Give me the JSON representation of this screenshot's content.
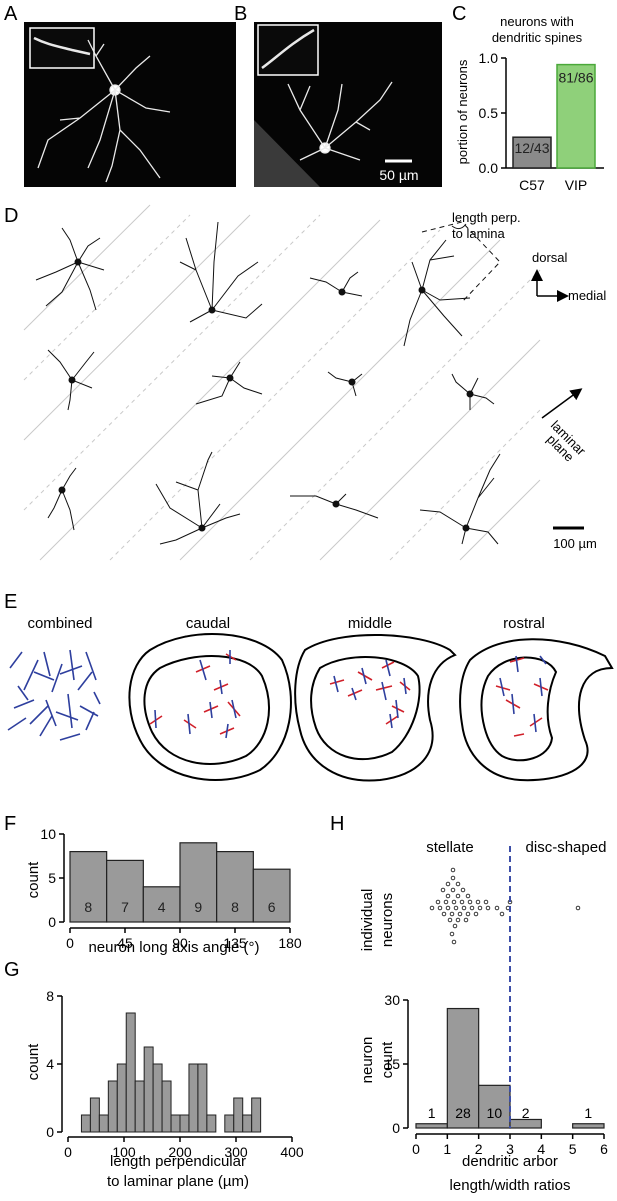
{
  "panels": {
    "A": {
      "label": "A"
    },
    "B": {
      "label": "B",
      "scalebar": "50 µm"
    },
    "C": {
      "label": "C",
      "title_line1": "neurons with",
      "title_line2": "dendritic spines",
      "ylabel": "portion of neurons"
    },
    "D": {
      "label": "D",
      "length_note_line1": "length perp.",
      "length_note_line2": "to lamina",
      "dorsal": "dorsal",
      "medial": "medial",
      "laminar_line1": "laminar",
      "laminar_line2": "plane",
      "scalebar": "100 µm"
    },
    "E": {
      "label": "E",
      "titles": [
        "combined",
        "caudal",
        "middle",
        "rostral"
      ]
    },
    "F": {
      "label": "F",
      "xlabel": "neuron long axis angle (°)",
      "ylabel": "count"
    },
    "G": {
      "label": "G",
      "xlabel_line1": "length perpendicular",
      "xlabel_line2": "to laminar plane (µm)",
      "ylabel": "count"
    },
    "H": {
      "label": "H",
      "stellate": "stellate",
      "disc": "disc-shaped",
      "top_ylabel_line1": "individual",
      "top_ylabel_line2": "neurons",
      "bottom_ylabel_line1": "neuron",
      "bottom_ylabel_line2": "count",
      "xlabel_line1": "dendritic arbor",
      "xlabel_line2": "length/width ratios"
    }
  },
  "colors": {
    "c57_bar": "#8a8a8a",
    "vip_bar": "#8fd07a",
    "vip_edge": "#4aa83a",
    "hist_bar": "#9a9a9a",
    "blue": "#2e3f9e",
    "red": "#d0202a",
    "threshold": "#3d4fa8"
  },
  "chart_data": [
    {
      "id": "C",
      "type": "bar",
      "categories": [
        "C57",
        "VIP"
      ],
      "values": [
        0.28,
        0.94
      ],
      "data_labels": [
        "12/43",
        "81/86"
      ],
      "ylim": [
        0,
        1.0
      ],
      "yticks": [
        "0.0",
        "0.5",
        "1.0"
      ],
      "ylabel": "portion of neurons",
      "title": "neurons with dendritic spines"
    },
    {
      "id": "F",
      "type": "bar",
      "bins": [
        [
          0,
          30
        ],
        [
          30,
          60
        ],
        [
          60,
          90
        ],
        [
          90,
          120
        ],
        [
          120,
          150
        ],
        [
          150,
          180
        ]
      ],
      "values": [
        8,
        7,
        4,
        9,
        8,
        6
      ],
      "data_labels": [
        "8",
        "7",
        "4",
        "9",
        "8",
        "6"
      ],
      "xticks": [
        "0",
        "45",
        "90",
        "135",
        "180"
      ],
      "yticks": [
        "0",
        "5",
        "10"
      ],
      "ylim": [
        0,
        10
      ],
      "xlabel": "neuron long axis angle (°)",
      "ylabel": "count"
    },
    {
      "id": "G",
      "type": "bar",
      "bin_width": 16,
      "bins_start": [
        24,
        40,
        56,
        72,
        88,
        104,
        120,
        136,
        152,
        168,
        184,
        200,
        216,
        232,
        248,
        264,
        280,
        296,
        312,
        328,
        344
      ],
      "values": [
        1,
        2,
        1,
        3,
        4,
        7,
        3,
        5,
        4,
        3,
        1,
        1,
        4,
        4,
        1,
        0,
        1,
        2,
        1,
        2,
        0
      ],
      "xticks": [
        "0",
        "100",
        "200",
        "300",
        "400"
      ],
      "yticks": [
        "0",
        "4",
        "8"
      ],
      "xlim": [
        0,
        400
      ],
      "ylim": [
        0,
        8
      ],
      "xlabel": "length perpendicular to laminar plane (µm)",
      "ylabel": "count"
    },
    {
      "id": "H",
      "type": "bar",
      "bins": [
        [
          0,
          1
        ],
        [
          1,
          2
        ],
        [
          2,
          3
        ],
        [
          3,
          4
        ],
        [
          4,
          5
        ],
        [
          5,
          6
        ]
      ],
      "values": [
        1,
        28,
        10,
        2,
        0,
        1
      ],
      "data_labels": [
        "1",
        "28",
        "10",
        "2",
        "",
        "1"
      ],
      "xticks": [
        "0",
        "1",
        "2",
        "3",
        "4",
        "5",
        "6"
      ],
      "yticks": [
        "0",
        "15",
        "30"
      ],
      "ylim": [
        0,
        30
      ],
      "threshold": 3,
      "xlabel": "dendritic arbor length/width ratios",
      "ylabel": "neuron count"
    }
  ]
}
